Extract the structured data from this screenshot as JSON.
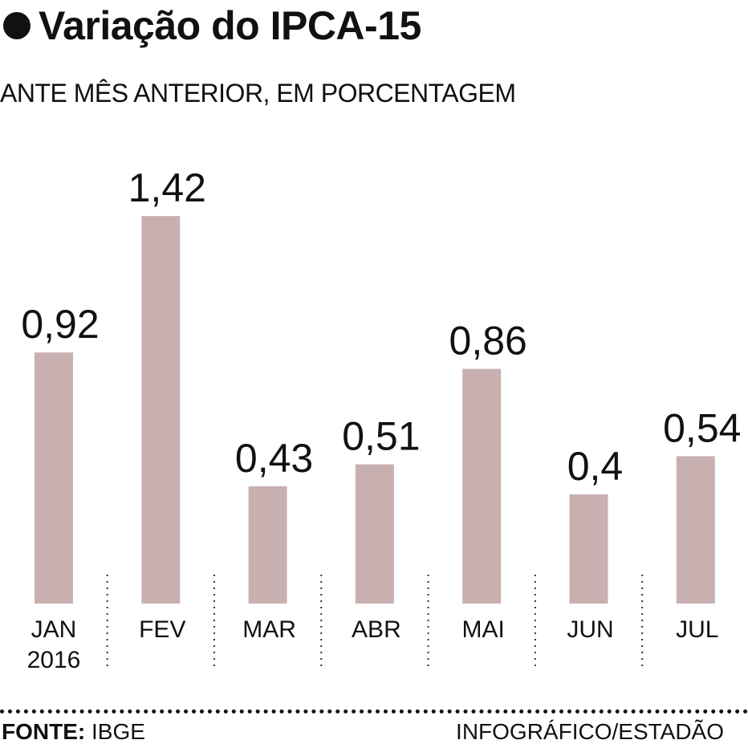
{
  "header": {
    "title": "Variação do IPCA-15",
    "subtitle": "ANTE MÊS ANTERIOR, EM PORCENTAGEM"
  },
  "chart_data": {
    "type": "bar",
    "categories": [
      "JAN 2016",
      "FEV",
      "MAR",
      "ABR",
      "MAI",
      "JUN",
      "JUL"
    ],
    "category_lines": [
      [
        "JAN",
        "2016"
      ],
      [
        "FEV"
      ],
      [
        "MAR"
      ],
      [
        "ABR"
      ],
      [
        "MAI"
      ],
      [
        "JUN"
      ],
      [
        "JUL"
      ]
    ],
    "values": [
      0.92,
      1.42,
      0.43,
      0.51,
      0.86,
      0.4,
      0.54
    ],
    "value_labels": [
      "0,92",
      "1,42",
      "0,43",
      "0,51",
      "0,86",
      "0,4",
      "0,54"
    ],
    "bar_color": "#c9b0b0",
    "grid": false,
    "legend": "none"
  },
  "footer": {
    "source_label": "FONTE:",
    "source_value": "IBGE",
    "credit": "INFOGRÁFICO/ESTADÃO"
  }
}
